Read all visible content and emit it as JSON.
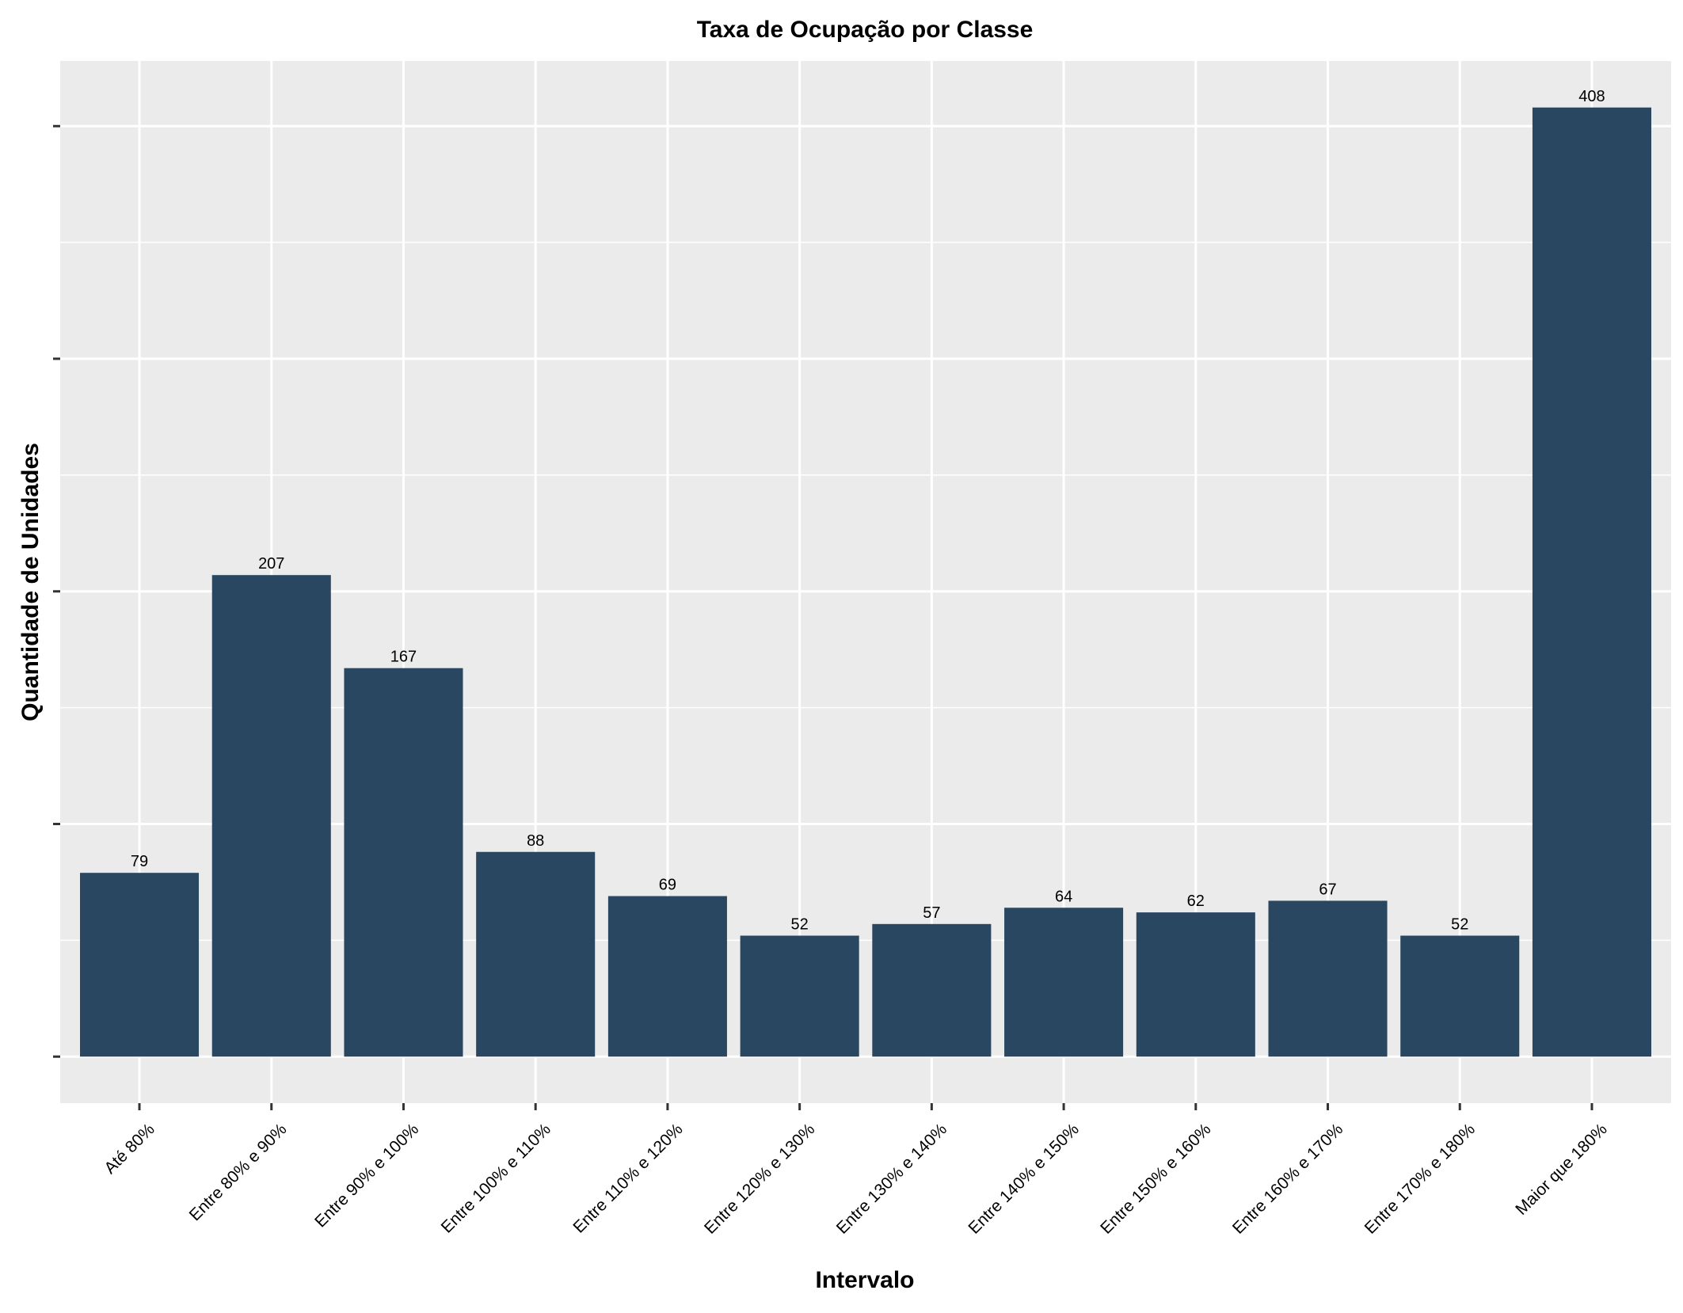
{
  "chart_data": {
    "type": "bar",
    "title": "Taxa de Ocupação por Classe",
    "xlabel": "Intervalo",
    "ylabel": "Quantidade de Unidades",
    "categories": [
      "Até 80%",
      "Entre 80% e 90%",
      "Entre 90% e 100%",
      "Entre 100% e 110%",
      "Entre 110% e 120%",
      "Entre 120% e 130%",
      "Entre 130% e 140%",
      "Entre 140% e 150%",
      "Entre 150% e 160%",
      "Entre 160% e 170%",
      "Entre 170% e 180%",
      "Maior que 180%"
    ],
    "values": [
      79,
      207,
      167,
      88,
      69,
      52,
      57,
      64,
      62,
      67,
      52,
      408
    ],
    "ylim": [
      -20,
      428
    ],
    "y_major_ticks": [
      0,
      100,
      200,
      300,
      400
    ],
    "y_minor_ticks": [
      50,
      150,
      250,
      350
    ],
    "y_tick_labels_shown": false,
    "grid": true,
    "legend": "none",
    "colors": {
      "bar": "#2a4761",
      "panel_background": "#ebebeb",
      "grid": "#ffffff",
      "text": "#000000",
      "axis_tick": "#333333"
    }
  }
}
